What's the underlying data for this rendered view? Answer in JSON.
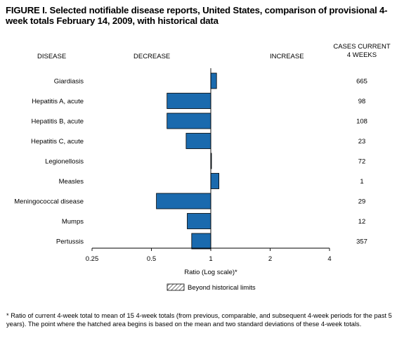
{
  "title": "FIGURE I. Selected notifiable disease reports, United States, comparison of provisional 4-week totals February 14, 2009, with historical data",
  "headers": {
    "disease": "DISEASE",
    "decrease": "DECREASE",
    "increase": "INCREASE",
    "cases_line1": "CASES CURRENT",
    "cases_line2": "4 WEEKS"
  },
  "legend": {
    "label": "Beyond historical limits"
  },
  "footnote": "* Ratio of current 4-week total to mean of 15 4-week totals (from previous, comparable, and subsequent 4-week periods for the past 5 years). The point where the hatched area begins is based on the mean and two standard deviations of these 4-week totals.",
  "colors": {
    "bar": "#1a6aae",
    "bar_stroke": "#000000"
  },
  "chart_data": {
    "type": "bar",
    "orientation": "horizontal",
    "scale": "log2",
    "xlabel": "Ratio (Log scale)*",
    "xlim": [
      0.25,
      4
    ],
    "xticks": [
      0.25,
      0.5,
      1,
      2,
      4
    ],
    "xtick_labels": [
      "0.25",
      "0.5",
      "1",
      "2",
      "4"
    ],
    "baseline": 1,
    "categories": [
      "Giardiasis",
      "Hepatitis A, acute",
      "Hepatitis B, acute",
      "Hepatitis C, acute",
      "Legionellosis",
      "Measles",
      "Meningococcal disease",
      "Mumps",
      "Pertussis"
    ],
    "values": [
      1.07,
      0.6,
      0.6,
      0.75,
      1.0,
      1.1,
      0.53,
      0.76,
      0.8
    ],
    "cases_current_4_weeks": [
      "665",
      "98",
      "108",
      "23",
      "72",
      "1",
      "29",
      "12",
      "357"
    ]
  }
}
